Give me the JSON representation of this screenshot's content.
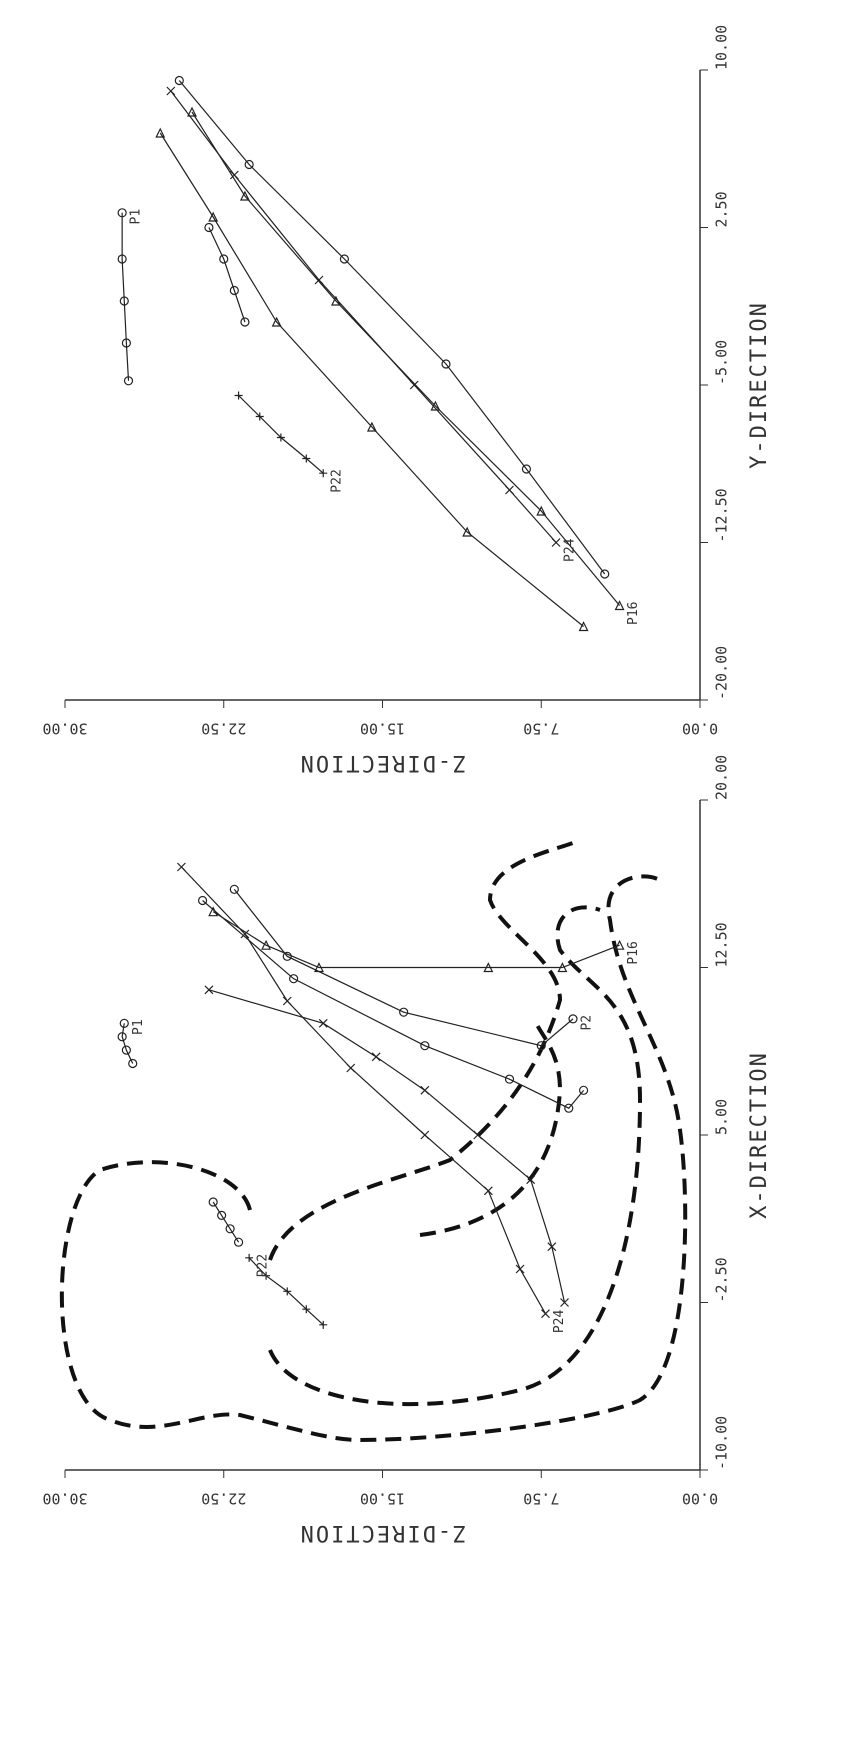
{
  "chart_data": [
    {
      "type": "line",
      "xlabel": "Y-DIRECTION",
      "ylabel": "Z-DIRECTION",
      "xlim": [
        -20,
        10
      ],
      "ylim": [
        0,
        30
      ],
      "xticks": [
        {
          "value": -20,
          "label": "-20.00"
        },
        {
          "value": -12.5,
          "label": "-12.50"
        },
        {
          "value": -5,
          "label": "-5.00"
        },
        {
          "value": 2.5,
          "label": "2.50"
        },
        {
          "value": 10,
          "label": "10.00"
        }
      ],
      "yticks": [
        {
          "value": 0,
          "label": "0.00"
        },
        {
          "value": 7.5,
          "label": "7.50"
        },
        {
          "value": 15,
          "label": "15.00"
        },
        {
          "value": 22.5,
          "label": "22.50"
        },
        {
          "value": 30,
          "label": "30.00"
        }
      ],
      "series": [
        {
          "name": "P1",
          "color": "#222222",
          "marker": "circle",
          "x": [
            -4.8,
            -3,
            -1,
            1,
            3.2
          ],
          "y": [
            27.0,
            27.1,
            27.2,
            27.3,
            27.3
          ]
        },
        {
          "color": "#222222",
          "marker": "circle",
          "x": [
            -2,
            -0.5,
            1,
            2.5
          ],
          "y": [
            21.5,
            22,
            22.5,
            23.2
          ]
        },
        {
          "name": "P22",
          "color": "#222222",
          "marker": "plus",
          "x": [
            -5.5,
            -6.5,
            -7.5,
            -8.5,
            -9.2
          ],
          "y": [
            21.8,
            20.8,
            19.8,
            18.6,
            17.8
          ]
        },
        {
          "name": "P24",
          "color": "#222222",
          "marker": "x",
          "x": [
            9,
            5,
            0,
            -5,
            -10,
            -12.5
          ],
          "y": [
            25,
            22,
            18,
            13.5,
            9,
            6.8
          ]
        },
        {
          "name": "P16",
          "color": "#222222",
          "marker": "triangle",
          "x": [
            8,
            4,
            -1,
            -6,
            -11,
            -15.5
          ],
          "y": [
            24,
            21.5,
            17.2,
            12.5,
            7.5,
            3.8
          ]
        },
        {
          "color": "#222222",
          "marker": "circle",
          "x": [
            9.5,
            5.5,
            1,
            -4,
            -9,
            -14
          ],
          "y": [
            24.6,
            21.3,
            16.8,
            12,
            8.2,
            4.5
          ]
        },
        {
          "color": "#222222",
          "marker": "triangle",
          "x": [
            7,
            3,
            -2,
            -7,
            -12,
            -16.5
          ],
          "y": [
            25.5,
            23,
            20,
            15.5,
            11,
            5.5
          ]
        }
      ]
    },
    {
      "type": "line",
      "xlabel": "X-DIRECTION",
      "ylabel": "Z-DIRECTION",
      "xlim": [
        -10,
        20
      ],
      "ylim": [
        0,
        30
      ],
      "xticks": [
        {
          "value": -10,
          "label": "-10.00"
        },
        {
          "value": -2.5,
          "label": "-2.50"
        },
        {
          "value": 5,
          "label": "5.00"
        },
        {
          "value": 12.5,
          "label": "12.50"
        },
        {
          "value": 20,
          "label": "20.00"
        }
      ],
      "yticks": [
        {
          "value": 0,
          "label": "0.00"
        },
        {
          "value": 7.5,
          "label": "7.50"
        },
        {
          "value": 15,
          "label": "15.00"
        },
        {
          "value": 22.5,
          "label": "22.50"
        },
        {
          "value": 30,
          "label": "30.00"
        }
      ],
      "series": [
        {
          "name": "P1",
          "color": "#222222",
          "marker": "circle",
          "x": [
            8.2,
            8.8,
            9.4,
            10
          ],
          "y": [
            26.8,
            27.1,
            27.3,
            27.2
          ]
        },
        {
          "color": "#222222",
          "marker": "circle",
          "x": [
            0.2,
            0.8,
            1.4,
            2
          ],
          "y": [
            21.8,
            22.2,
            22.6,
            23
          ]
        },
        {
          "name": "P22",
          "color": "#222222",
          "marker": "plus",
          "x": [
            -3.5,
            -2.8,
            -2,
            -1.3,
            -0.5
          ],
          "y": [
            17.8,
            18.6,
            19.5,
            20.5,
            21.3
          ]
        },
        {
          "name": "P24",
          "color": "#222222",
          "marker": "x",
          "x": [
            17,
            14,
            11,
            8,
            5,
            2.5,
            -1,
            -3
          ],
          "y": [
            24.5,
            21.5,
            19.5,
            16.5,
            13,
            10,
            8.5,
            7.3
          ]
        },
        {
          "name": "P16",
          "color": "#222222",
          "marker": "triangle",
          "x": [
            15,
            13.5,
            12.5,
            12.5,
            12.5,
            13.5
          ],
          "y": [
            23,
            20.5,
            18,
            10,
            6.5,
            3.8
          ]
        },
        {
          "name": "P2",
          "color": "#222222",
          "marker": "circle",
          "x": [
            16,
            13,
            10.5,
            9,
            10.2
          ],
          "y": [
            22,
            19.5,
            14,
            7.5,
            6
          ]
        },
        {
          "color": "#222222",
          "marker": "circle",
          "x": [
            15.5,
            12,
            9,
            7.5,
            6.2,
            7
          ],
          "y": [
            23.5,
            19.2,
            13,
            9,
            6.2,
            5.5
          ]
        },
        {
          "color": "#222222",
          "marker": "x",
          "x": [
            11.5,
            10,
            8.5,
            7,
            5,
            3,
            0,
            -2.5
          ],
          "y": [
            23.2,
            17.8,
            15.3,
            13,
            10.5,
            8,
            7,
            6.4
          ]
        }
      ]
    }
  ]
}
